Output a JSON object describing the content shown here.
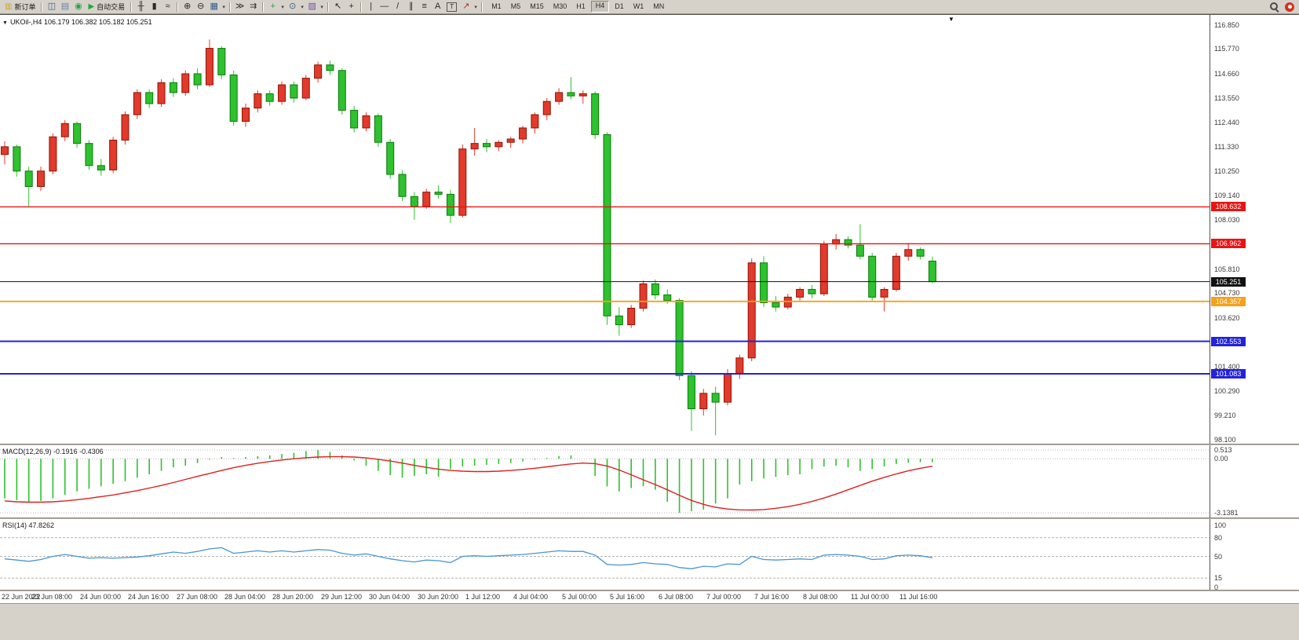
{
  "toolbar": {
    "items": [
      {
        "kind": "button",
        "name": "new-order-button",
        "glyph": "▥",
        "color": "#caa61d",
        "label": "新订单"
      },
      {
        "kind": "sep"
      },
      {
        "kind": "icon",
        "name": "new-chart-icon",
        "glyph": "◫",
        "color": "#355c8c"
      },
      {
        "kind": "icon",
        "name": "profiles-icon",
        "glyph": "▤",
        "color": "#6a7fae"
      },
      {
        "kind": "icon",
        "name": "refresh-icon",
        "glyph": "◉",
        "color": "#2e9e4f"
      },
      {
        "kind": "button",
        "name": "autotrading-button",
        "glyph": "▶",
        "color": "#1faa3c",
        "label": "自动交易"
      },
      {
        "kind": "sep"
      },
      {
        "kind": "icon",
        "name": "bar-chart-icon",
        "glyph": "╫",
        "color": "#2a2a2a"
      },
      {
        "kind": "icon",
        "name": "candlestick-chart-icon",
        "glyph": "▮",
        "color": "#2a2a2a"
      },
      {
        "kind": "icon",
        "name": "line-chart-icon",
        "glyph": "≈",
        "color": "#2a2a2a"
      },
      {
        "kind": "sep"
      },
      {
        "kind": "icon",
        "name": "zoom-in-icon",
        "glyph": "⊕",
        "color": "#2a2a2a"
      },
      {
        "kind": "icon",
        "name": "zoom-out-icon",
        "glyph": "⊖",
        "color": "#2a2a2a"
      },
      {
        "kind": "icon",
        "name": "tile-windows-icon",
        "glyph": "▦",
        "color": "#355c8c"
      },
      {
        "kind": "dd",
        "name": "windows-dropdown-icon"
      },
      {
        "kind": "sep"
      },
      {
        "kind": "icon",
        "name": "auto-scroll-icon",
        "glyph": "≫",
        "color": "#2a2a2a"
      },
      {
        "kind": "icon",
        "name": "chart-shift-icon",
        "glyph": "⇉",
        "color": "#2a2a2a"
      },
      {
        "kind": "sep"
      },
      {
        "kind": "icon",
        "name": "indicators-icon",
        "glyph": "+",
        "color": "#1faa3c"
      },
      {
        "kind": "dd",
        "name": "indicators-dropdown-icon"
      },
      {
        "kind": "icon",
        "name": "periods-icon",
        "glyph": "⊙",
        "color": "#355c8c"
      },
      {
        "kind": "dd",
        "name": "periods-dropdown-icon"
      },
      {
        "kind": "icon",
        "name": "templates-icon",
        "glyph": "▨",
        "color": "#7a4fa0"
      },
      {
        "kind": "dd",
        "name": "templates-dropdown-icon"
      },
      {
        "kind": "sep"
      },
      {
        "kind": "icon",
        "name": "cursor-icon",
        "glyph": "↖",
        "color": "#2a2a2a"
      },
      {
        "kind": "icon",
        "name": "crosshair-icon",
        "glyph": "+",
        "color": "#2a2a2a"
      },
      {
        "kind": "sep"
      },
      {
        "kind": "icon",
        "name": "vertical-line-icon",
        "glyph": "|",
        "color": "#2a2a2a"
      },
      {
        "kind": "icon",
        "name": "horizontal-line-icon",
        "glyph": "—",
        "color": "#2a2a2a"
      },
      {
        "kind": "icon",
        "name": "trendline-icon",
        "glyph": "/",
        "color": "#2a2a2a"
      },
      {
        "kind": "icon",
        "name": "channel-icon",
        "glyph": "∥",
        "color": "#2a2a2a"
      },
      {
        "kind": "icon",
        "name": "fibonacci-icon",
        "glyph": "≡",
        "color": "#2a2a2a"
      },
      {
        "kind": "icon",
        "name": "text-icon",
        "glyph": "A",
        "color": "#2a2a2a"
      },
      {
        "kind": "icon",
        "name": "text-label-icon",
        "glyph": "T",
        "color": "#2a2a2a",
        "boxed": true
      },
      {
        "kind": "icon",
        "name": "arrows-icon",
        "glyph": "↗",
        "color": "#b03030"
      },
      {
        "kind": "dd",
        "name": "arrows-dropdown-icon"
      },
      {
        "kind": "sep"
      }
    ],
    "timeframes": [
      "M1",
      "M5",
      "M15",
      "M30",
      "H1",
      "H4",
      "D1",
      "W1",
      "MN"
    ],
    "active_timeframe": "H4"
  },
  "chart": {
    "info": "UKOil-,H4  106.179 106.382 105.182 105.251",
    "price_max": 116.85,
    "price_min": 98.1,
    "price_ticks": [
      "116.850",
      "115.770",
      "114.660",
      "113.550",
      "112.440",
      "111.330",
      "110.250",
      "109.140",
      "108.030",
      "105.810",
      "104.730",
      "103.620",
      "101.400",
      "100.290",
      "99.210",
      "98.100"
    ],
    "up_color": "#e23a2b",
    "up_border": "#8f1408",
    "down_color": "#2ec22e",
    "down_border": "#0b7a0b",
    "hlines": [
      {
        "price": 108.632,
        "label": "108.632",
        "color": "#e81414",
        "width": 1.4
      },
      {
        "price": 106.962,
        "label": "106.962",
        "color": "#e81414",
        "width": 1.4
      },
      {
        "price": 105.251,
        "label": "105.251",
        "color": "#111111",
        "width": 1.1
      },
      {
        "price": 104.357,
        "label": "104.357",
        "color": "#f6a01c",
        "width": 1.8
      },
      {
        "price": 102.553,
        "label": "102.553",
        "color": "#2222dd",
        "width": 2
      },
      {
        "price": 101.083,
        "label": "101.083",
        "color": "#2222dd",
        "width": 2
      }
    ],
    "candles": [
      [
        111.0,
        111.6,
        110.55,
        111.35
      ],
      [
        111.35,
        111.45,
        110.0,
        110.25
      ],
      [
        110.25,
        110.45,
        108.65,
        109.55
      ],
      [
        109.55,
        110.45,
        109.35,
        110.25
      ],
      [
        110.25,
        111.95,
        110.1,
        111.8
      ],
      [
        111.8,
        112.55,
        111.6,
        112.4
      ],
      [
        112.4,
        112.5,
        111.3,
        111.5
      ],
      [
        111.5,
        111.65,
        110.3,
        110.5
      ],
      [
        110.5,
        110.8,
        110.05,
        110.3
      ],
      [
        110.3,
        111.8,
        110.15,
        111.65
      ],
      [
        111.65,
        112.95,
        111.45,
        112.8
      ],
      [
        112.8,
        113.95,
        112.6,
        113.8
      ],
      [
        113.8,
        113.95,
        113.1,
        113.3
      ],
      [
        113.3,
        114.4,
        113.15,
        114.25
      ],
      [
        114.25,
        114.45,
        113.6,
        113.8
      ],
      [
        113.8,
        114.8,
        113.65,
        114.65
      ],
      [
        114.65,
        114.9,
        113.95,
        114.15
      ],
      [
        114.15,
        116.2,
        114.05,
        115.8
      ],
      [
        115.8,
        115.9,
        114.4,
        114.6
      ],
      [
        114.6,
        114.8,
        112.3,
        112.5
      ],
      [
        112.5,
        113.3,
        112.25,
        113.1
      ],
      [
        113.1,
        113.9,
        112.9,
        113.75
      ],
      [
        113.75,
        113.9,
        113.2,
        113.4
      ],
      [
        113.4,
        114.3,
        113.25,
        114.15
      ],
      [
        114.15,
        114.3,
        113.35,
        113.55
      ],
      [
        113.55,
        114.6,
        113.45,
        114.45
      ],
      [
        114.45,
        115.2,
        114.25,
        115.05
      ],
      [
        115.05,
        115.25,
        114.6,
        114.8
      ],
      [
        114.8,
        114.9,
        112.8,
        113.0
      ],
      [
        113.0,
        113.2,
        112.0,
        112.2
      ],
      [
        112.2,
        112.9,
        112.05,
        112.75
      ],
      [
        112.75,
        112.85,
        111.35,
        111.55
      ],
      [
        111.55,
        111.7,
        109.9,
        110.1
      ],
      [
        110.1,
        110.3,
        108.9,
        109.1
      ],
      [
        109.1,
        109.3,
        108.05,
        108.65
      ],
      [
        108.65,
        109.45,
        108.55,
        109.3
      ],
      [
        109.3,
        109.6,
        109.0,
        109.2
      ],
      [
        109.2,
        109.4,
        107.9,
        108.25
      ],
      [
        108.25,
        111.45,
        108.15,
        111.25
      ],
      [
        111.25,
        112.2,
        110.95,
        111.5
      ],
      [
        111.5,
        111.7,
        111.1,
        111.35
      ],
      [
        111.35,
        111.65,
        111.15,
        111.55
      ],
      [
        111.55,
        111.8,
        111.3,
        111.7
      ],
      [
        111.7,
        112.3,
        111.5,
        112.2
      ],
      [
        112.2,
        112.9,
        111.95,
        112.8
      ],
      [
        112.8,
        113.55,
        112.55,
        113.4
      ],
      [
        113.4,
        114.0,
        113.25,
        113.8
      ],
      [
        113.8,
        114.5,
        113.5,
        113.65
      ],
      [
        113.65,
        113.9,
        113.3,
        113.75
      ],
      [
        113.75,
        113.85,
        111.7,
        111.9
      ],
      [
        111.9,
        112.0,
        103.3,
        103.7
      ],
      [
        103.7,
        104.1,
        102.8,
        103.3
      ],
      [
        103.3,
        104.2,
        103.15,
        104.05
      ],
      [
        104.05,
        105.3,
        103.9,
        105.15
      ],
      [
        105.15,
        105.35,
        104.45,
        104.65
      ],
      [
        104.65,
        104.9,
        104.25,
        104.4
      ],
      [
        104.4,
        104.5,
        100.8,
        101.0
      ],
      [
        101.0,
        101.2,
        98.5,
        99.5
      ],
      [
        99.5,
        100.4,
        99.2,
        100.2
      ],
      [
        100.2,
        100.5,
        98.3,
        99.8
      ],
      [
        99.8,
        101.3,
        99.65,
        101.1
      ],
      [
        101.1,
        101.95,
        100.85,
        101.8
      ],
      [
        101.8,
        106.3,
        101.65,
        106.1
      ],
      [
        106.1,
        106.4,
        104.1,
        104.3
      ],
      [
        104.3,
        104.6,
        103.9,
        104.1
      ],
      [
        104.1,
        104.7,
        104.0,
        104.55
      ],
      [
        104.55,
        105.0,
        104.4,
        104.9
      ],
      [
        104.9,
        105.1,
        104.5,
        104.7
      ],
      [
        104.7,
        107.1,
        104.6,
        106.95
      ],
      [
        106.95,
        107.4,
        106.7,
        107.15
      ],
      [
        107.15,
        107.3,
        106.75,
        106.9
      ],
      [
        106.9,
        107.85,
        106.25,
        106.4
      ],
      [
        106.4,
        106.55,
        104.4,
        104.55
      ],
      [
        104.55,
        105.0,
        103.9,
        104.9
      ],
      [
        104.9,
        106.55,
        104.8,
        106.4
      ],
      [
        106.4,
        107.0,
        106.2,
        106.7
      ],
      [
        106.7,
        106.8,
        106.25,
        106.4
      ],
      [
        106.179,
        106.382,
        105.182,
        105.251
      ]
    ]
  },
  "macd": {
    "label": "MACD(12,26,9)",
    "values_text": "-0.1916 -0.4306",
    "axis": [
      "0.513",
      "0.00",
      "-3.1381"
    ],
    "max": 0.513,
    "min": -3.1381,
    "hist_color": "#2ec22e",
    "signal_color": "#e02020",
    "hist": [
      -2.3,
      -2.4,
      -2.5,
      -2.45,
      -2.3,
      -2.1,
      -1.9,
      -1.75,
      -1.6,
      -1.45,
      -1.3,
      -1.1,
      -0.9,
      -0.7,
      -0.5,
      -0.4,
      -0.25,
      -0.05,
      0.1,
      0.05,
      0.1,
      0.15,
      0.2,
      0.28,
      0.35,
      0.45,
      0.51,
      0.4,
      0.2,
      -0.1,
      -0.4,
      -0.7,
      -0.95,
      -1.1,
      -1.0,
      -0.9,
      -1.05,
      -0.6,
      -0.45,
      -0.4,
      -0.35,
      -0.3,
      -0.25,
      -0.15,
      -0.05,
      0.05,
      0.15,
      0.2,
      0.0,
      -1.0,
      -1.6,
      -1.9,
      -1.7,
      -1.6,
      -1.8,
      -2.5,
      -3.1381,
      -3.05,
      -2.95,
      -2.6,
      -2.3,
      -1.5,
      -1.3,
      -1.15,
      -1.05,
      -0.95,
      -0.9,
      -0.6,
      -0.45,
      -0.4,
      -0.5,
      -0.7,
      -0.6,
      -0.45,
      -0.3,
      -0.22,
      -0.19,
      -0.1916
    ],
    "signal": [
      -2.45,
      -2.5,
      -2.52,
      -2.52,
      -2.5,
      -2.45,
      -2.38,
      -2.3,
      -2.2,
      -2.1,
      -1.98,
      -1.85,
      -1.7,
      -1.55,
      -1.38,
      -1.2,
      -1.02,
      -0.85,
      -0.68,
      -0.52,
      -0.38,
      -0.26,
      -0.16,
      -0.07,
      0.0,
      0.06,
      0.1,
      0.12,
      0.12,
      0.1,
      0.05,
      -0.03,
      -0.13,
      -0.25,
      -0.38,
      -0.5,
      -0.6,
      -0.68,
      -0.72,
      -0.74,
      -0.74,
      -0.72,
      -0.68,
      -0.62,
      -0.55,
      -0.47,
      -0.38,
      -0.3,
      -0.25,
      -0.28,
      -0.42,
      -0.65,
      -0.93,
      -1.22,
      -1.5,
      -1.8,
      -2.12,
      -2.42,
      -2.65,
      -2.82,
      -2.92,
      -2.97,
      -2.98,
      -2.95,
      -2.88,
      -2.78,
      -2.65,
      -2.48,
      -2.28,
      -2.05,
      -1.8,
      -1.55,
      -1.3,
      -1.08,
      -0.88,
      -0.7,
      -0.55,
      -0.4306
    ]
  },
  "rsi": {
    "label": "RSI(14)",
    "value_text": "47.8262",
    "line_color": "#4a96d2",
    "levels": [
      "100",
      "80",
      "50",
      "15",
      "0"
    ],
    "dashed_levels": [
      80,
      50,
      15
    ],
    "values": [
      46,
      44,
      42,
      45,
      50,
      53,
      50,
      47,
      48,
      47,
      48,
      49,
      51,
      54,
      57,
      55,
      58,
      62,
      64,
      55,
      57,
      59,
      57,
      59,
      57,
      59,
      61,
      60,
      55,
      52,
      54,
      50,
      46,
      43,
      41,
      44,
      43,
      40,
      50,
      51,
      50,
      51,
      52,
      53,
      55,
      57,
      59,
      58,
      58,
      52,
      37,
      36,
      37,
      40,
      38,
      37,
      32,
      30,
      34,
      33,
      38,
      37,
      50,
      45,
      44,
      45,
      46,
      45,
      52,
      53,
      52,
      50,
      45,
      46,
      51,
      52,
      51,
      47.8262
    ]
  },
  "time_axis": {
    "step": 4,
    "labels": [
      "22 Jun 2022",
      "23 Jun 08:00",
      "24 Jun 00:00",
      "24 Jun 16:00",
      "27 Jun 08:00",
      "28 Jun 04:00",
      "28 Jun 20:00",
      "29 Jun 12:00",
      "30 Jun 04:00",
      "30 Jun 20:00",
      "1 Jul 12:00",
      "4 Jul 04:00",
      "5 Jul 00:00",
      "5 Jul 16:00",
      "6 Jul 08:00",
      "7 Jul 00:00",
      "7 Jul 16:00",
      "8 Jul 08:00",
      "11 Jul 00:00",
      "11 Jul 16:00"
    ]
  }
}
